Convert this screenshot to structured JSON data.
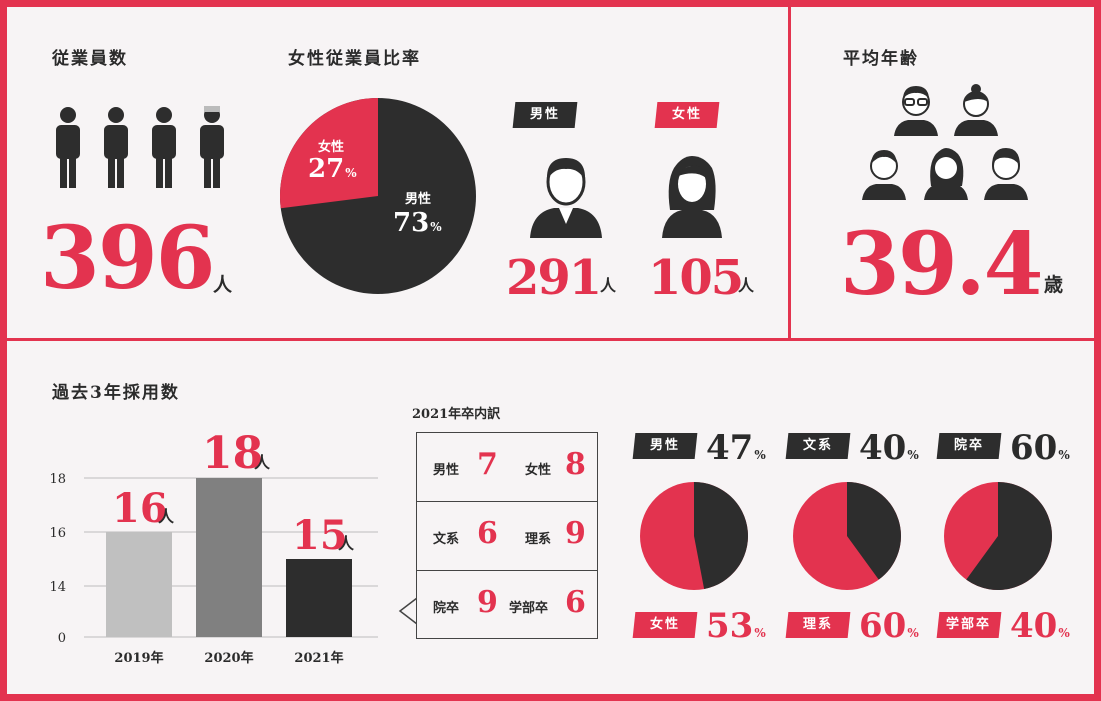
{
  "colors": {
    "accent": "#e3334f",
    "dark": "#2d2d2d",
    "gray_light": "#c0c0c0",
    "gray_mid": "#808080"
  },
  "employees": {
    "title": "従業員数",
    "value": "396",
    "unit": "人"
  },
  "female_ratio": {
    "title": "女性従業員比率",
    "female_label": "女性",
    "female_value": "27",
    "female_unit": "%",
    "male_label": "男性",
    "male_value": "73",
    "male_unit": "%",
    "male_tag": "男性",
    "female_tag": "女性",
    "male_count": "291",
    "male_unit_person": "人",
    "female_count": "105",
    "female_unit_person": "人"
  },
  "avg_age": {
    "title": "平均年齢",
    "value": "39.4",
    "unit": "歳"
  },
  "hiring": {
    "title": "過去3年採用数"
  },
  "chart_data": {
    "type": "bar",
    "categories": [
      "2019年",
      "2020年",
      "2021年"
    ],
    "values": [
      16,
      18,
      15
    ],
    "value_labels": [
      "16",
      "18",
      "15"
    ],
    "value_unit": "人",
    "yticks": [
      "18",
      "16",
      "14",
      "0"
    ],
    "ylim": [
      0,
      18
    ],
    "grid": true
  },
  "breakdown": {
    "title": "2021年卒内訳",
    "rows": [
      {
        "l1": "男性",
        "v1": "7",
        "l2": "女性",
        "v2": "8"
      },
      {
        "l1": "文系",
        "v1": "6",
        "l2": "理系",
        "v2": "9"
      },
      {
        "l1": "院卒",
        "v1": "9",
        "l2": "学部卒",
        "v2": "6"
      }
    ]
  },
  "pies": [
    {
      "top_label": "男性",
      "top_value": "47",
      "bottom_label": "女性",
      "bottom_value": "53",
      "unit": "%",
      "dark_fraction": 0.47
    },
    {
      "top_label": "文系",
      "top_value": "40",
      "bottom_label": "理系",
      "bottom_value": "60",
      "unit": "%",
      "dark_fraction": 0.4
    },
    {
      "top_label": "院卒",
      "top_value": "60",
      "bottom_label": "学部卒",
      "bottom_value": "40",
      "unit": "%",
      "dark_fraction": 0.6
    }
  ]
}
